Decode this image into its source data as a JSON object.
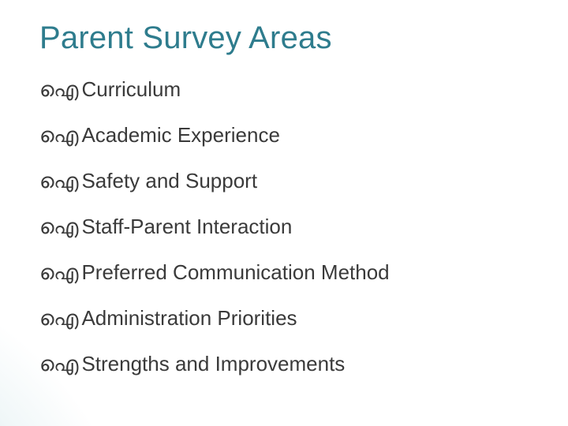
{
  "slide": {
    "title": "Parent Survey Areas",
    "title_color": "#2e7c8d",
    "title_fontsize": 40,
    "text_color": "#3a3a3a",
    "item_fontsize": 26,
    "background_color": "#ffffff",
    "gradient_color": "#6fa6b2",
    "bullet_glyph": "ഐ",
    "items": [
      "Curriculum",
      "Academic Experience",
      "Safety and Support",
      "Staff-Parent Interaction",
      "Preferred Communication Method",
      "Administration Priorities",
      "Strengths and Improvements"
    ]
  }
}
